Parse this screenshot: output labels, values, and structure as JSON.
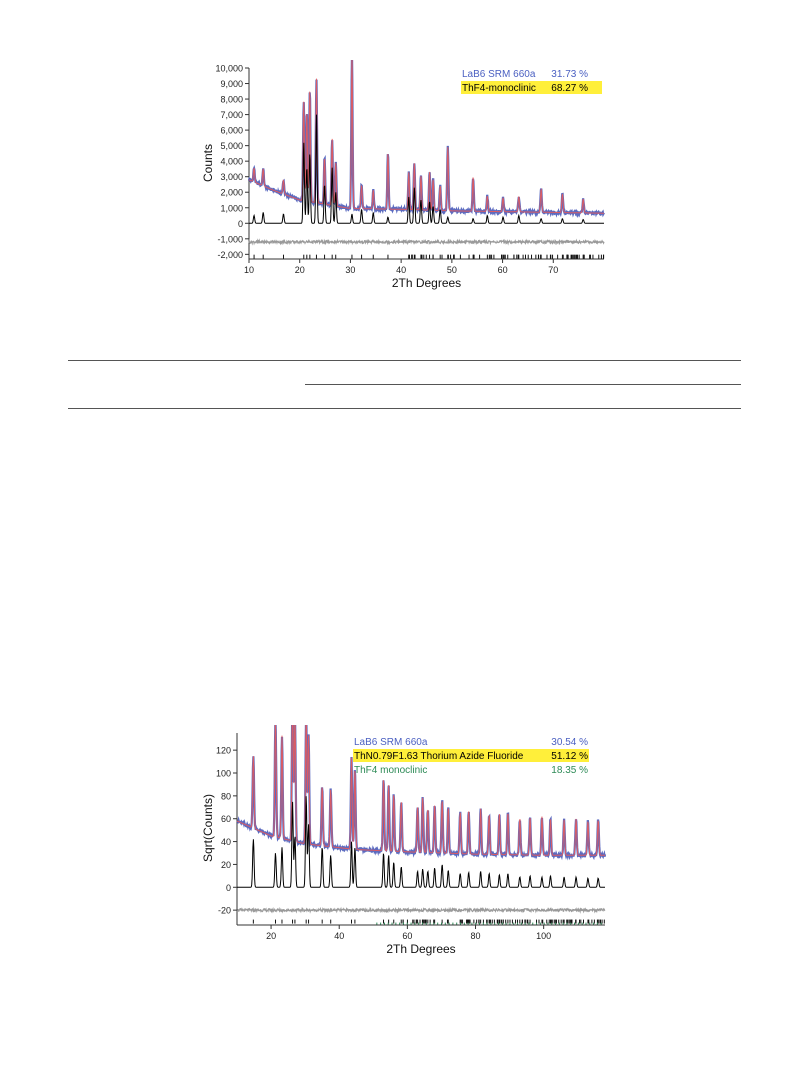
{
  "chart_data": [
    {
      "type": "line",
      "xlabel": "2Th Degrees",
      "ylabel": "Counts",
      "xlim": [
        10,
        80
      ],
      "ylim": [
        -2300,
        10000
      ],
      "x_ticks": [
        10,
        20,
        30,
        40,
        50,
        60,
        70
      ],
      "y_ticks": [
        10000,
        9000,
        8000,
        7000,
        6000,
        5000,
        4000,
        3000,
        2000,
        1000,
        0,
        -1000,
        -2000
      ],
      "y_tick_labels": [
        "10,000",
        "9,000",
        "8,000",
        "7,000",
        "6,000",
        "5,000",
        "4,000",
        "3,000",
        "2,000",
        "1,000",
        "0",
        "-1,000",
        "-2,000"
      ],
      "legend_position": "top-right",
      "legend": [
        {
          "name": "LaB6 SRM 660a",
          "percent": "31.73 %",
          "color": "#4a5fc1",
          "highlight": false
        },
        {
          "name": "ThF4-monoclinic",
          "percent": "68.27 %",
          "color": "#000000",
          "highlight": true
        }
      ],
      "background": {
        "x": [
          10,
          15,
          20,
          30,
          40,
          50,
          60,
          70,
          80
        ],
        "y": [
          2800,
          2100,
          1500,
          950,
          900,
          800,
          750,
          700,
          650
        ]
      },
      "peaks": [
        {
          "x": 11.0,
          "calc": 500,
          "obs": 900
        },
        {
          "x": 12.8,
          "calc": 700,
          "obs": 1100
        },
        {
          "x": 16.8,
          "calc": 600,
          "obs": 900
        },
        {
          "x": 20.8,
          "calc": 5200,
          "obs": 6400
        },
        {
          "x": 21.4,
          "calc": 3600,
          "obs": 5800
        },
        {
          "x": 22.0,
          "calc": 4500,
          "obs": 7200
        },
        {
          "x": 23.3,
          "calc": 7000,
          "obs": 8000
        },
        {
          "x": 24.9,
          "calc": 2500,
          "obs": 3000
        },
        {
          "x": 26.4,
          "calc": 3600,
          "obs": 4300
        },
        {
          "x": 27.1,
          "calc": 2000,
          "obs": 2800
        },
        {
          "x": 30.3,
          "calc": 600,
          "obs": 10000
        },
        {
          "x": 32.2,
          "calc": 900,
          "obs": 1500
        },
        {
          "x": 34.5,
          "calc": 700,
          "obs": 1200
        },
        {
          "x": 37.4,
          "calc": 400,
          "obs": 3600
        },
        {
          "x": 41.5,
          "calc": 1700,
          "obs": 2400
        },
        {
          "x": 42.6,
          "calc": 2300,
          "obs": 3000
        },
        {
          "x": 43.9,
          "calc": 1500,
          "obs": 2200
        },
        {
          "x": 45.6,
          "calc": 1400,
          "obs": 2500
        },
        {
          "x": 46.3,
          "calc": 1100,
          "obs": 2000
        },
        {
          "x": 47.7,
          "calc": 900,
          "obs": 1600
        },
        {
          "x": 49.2,
          "calc": 400,
          "obs": 4100
        },
        {
          "x": 54.2,
          "calc": 300,
          "obs": 2200
        },
        {
          "x": 57.0,
          "calc": 500,
          "obs": 1000
        },
        {
          "x": 60.1,
          "calc": 400,
          "obs": 900
        },
        {
          "x": 63.2,
          "calc": 500,
          "obs": 1000
        },
        {
          "x": 67.6,
          "calc": 300,
          "obs": 1500
        },
        {
          "x": 71.8,
          "calc": 300,
          "obs": 1200
        },
        {
          "x": 75.9,
          "calc": 250,
          "obs": 900
        }
      ],
      "difference_offset": -1200,
      "tick_row_y": -2150
    },
    {
      "type": "line",
      "xlabel": "2Th Degrees",
      "ylabel": "Sqrt(Counts)",
      "xlim": [
        10,
        118
      ],
      "ylim": [
        -33,
        135
      ],
      "x_ticks": [
        20,
        40,
        60,
        80,
        100
      ],
      "y_ticks": [
        120,
        100,
        80,
        60,
        40,
        20,
        0,
        -20
      ],
      "y_tick_labels": [
        "120",
        "100",
        "80",
        "60",
        "40",
        "20",
        "0",
        "-20"
      ],
      "legend_position": "top-right",
      "legend": [
        {
          "name": "LaB6 SRM 660a",
          "percent": "30.54 %",
          "color": "#4a5fc1",
          "highlight": false
        },
        {
          "name": "ThN0.79F1.63 Thorium Azide Fluoride",
          "percent": "51.12 %",
          "color": "#000000",
          "highlight": true
        },
        {
          "name": "ThF4 monoclinic",
          "percent": "18.35 %",
          "color": "#2e8b57",
          "highlight": false
        }
      ],
      "background": {
        "x": [
          10,
          20,
          30,
          45,
          60,
          80,
          100,
          118
        ],
        "y": [
          58,
          45,
          38,
          33,
          31,
          29,
          28,
          28
        ]
      },
      "peaks": [
        {
          "x": 14.8,
          "calc": 42,
          "obs": 63
        },
        {
          "x": 21.3,
          "calc": 30,
          "obs": 104
        },
        {
          "x": 23.2,
          "calc": 35,
          "obs": 90
        },
        {
          "x": 26.3,
          "calc": 75,
          "obs": 133
        },
        {
          "x": 27.0,
          "calc": 45,
          "obs": 110
        },
        {
          "x": 30.3,
          "calc": 80,
          "obs": 115
        },
        {
          "x": 31.0,
          "calc": 55,
          "obs": 95
        },
        {
          "x": 35.0,
          "calc": 35,
          "obs": 52
        },
        {
          "x": 37.5,
          "calc": 28,
          "obs": 50
        },
        {
          "x": 43.6,
          "calc": 40,
          "obs": 80
        },
        {
          "x": 44.6,
          "calc": 35,
          "obs": 70
        },
        {
          "x": 53.0,
          "calc": 30,
          "obs": 63
        },
        {
          "x": 54.5,
          "calc": 28,
          "obs": 58
        },
        {
          "x": 56.0,
          "calc": 22,
          "obs": 50
        },
        {
          "x": 58.2,
          "calc": 18,
          "obs": 44
        },
        {
          "x": 63.0,
          "calc": 14,
          "obs": 40
        },
        {
          "x": 64.5,
          "calc": 16,
          "obs": 48
        },
        {
          "x": 66.0,
          "calc": 14,
          "obs": 38
        },
        {
          "x": 68.0,
          "calc": 17,
          "obs": 42
        },
        {
          "x": 70.2,
          "calc": 20,
          "obs": 46
        },
        {
          "x": 72.0,
          "calc": 15,
          "obs": 40
        },
        {
          "x": 75.5,
          "calc": 12,
          "obs": 36
        },
        {
          "x": 78.0,
          "calc": 13,
          "obs": 38
        },
        {
          "x": 81.5,
          "calc": 14,
          "obs": 40
        },
        {
          "x": 84.0,
          "calc": 12,
          "obs": 35
        },
        {
          "x": 87.0,
          "calc": 11,
          "obs": 36
        },
        {
          "x": 89.5,
          "calc": 12,
          "obs": 37
        },
        {
          "x": 93.0,
          "calc": 9,
          "obs": 32
        },
        {
          "x": 96.0,
          "calc": 10,
          "obs": 33
        },
        {
          "x": 99.5,
          "calc": 9,
          "obs": 34
        },
        {
          "x": 102.0,
          "calc": 10,
          "obs": 32
        },
        {
          "x": 106.0,
          "calc": 9,
          "obs": 31
        },
        {
          "x": 109.5,
          "calc": 9,
          "obs": 32
        },
        {
          "x": 113.0,
          "calc": 8,
          "obs": 30
        },
        {
          "x": 116.0,
          "calc": 8,
          "obs": 31
        }
      ],
      "difference_offset": -20,
      "tick_row_y": -30
    }
  ]
}
